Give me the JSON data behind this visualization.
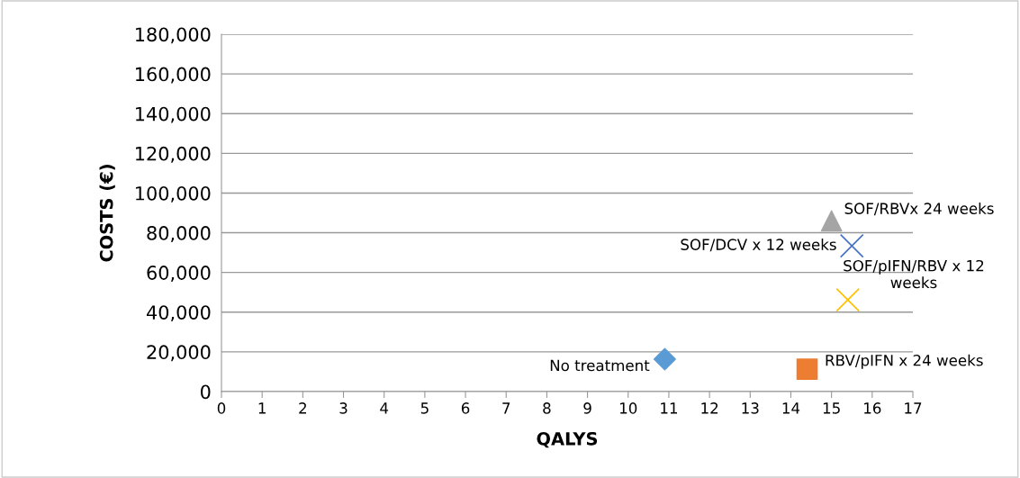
{
  "chart_data": {
    "type": "scatter",
    "xlabel": "QALYS",
    "ylabel": "COSTS (€)",
    "xlim": [
      0,
      17
    ],
    "xticks": [
      0,
      1,
      2,
      3,
      4,
      5,
      6,
      7,
      8,
      9,
      10,
      11,
      12,
      13,
      14,
      15,
      16,
      17
    ],
    "ylim": [
      0,
      180000
    ],
    "yticks": [
      {
        "value": 0,
        "label": "0"
      },
      {
        "value": 20000,
        "label": "20,000"
      },
      {
        "value": 40000,
        "label": "40,000"
      },
      {
        "value": 60000,
        "label": "60,000"
      },
      {
        "value": 80000,
        "label": "80,000"
      },
      {
        "value": 100000,
        "label": "100,000"
      },
      {
        "value": 120000,
        "label": "120,000"
      },
      {
        "value": 140000,
        "label": "140,000"
      },
      {
        "value": 160000,
        "label": "160,000"
      },
      {
        "value": 180000,
        "label": "180,000"
      }
    ],
    "grid": "y",
    "legend": false,
    "series": [
      {
        "name": "No treatment",
        "color": "#5b9bd5",
        "marker": "diamond",
        "x": [
          10.9
        ],
        "values": [
          16300
        ]
      },
      {
        "name": "RBV/pIFN x 24 weeks",
        "color": "#ed7d31",
        "marker": "square",
        "x": [
          14.4
        ],
        "values": [
          11300
        ]
      },
      {
        "name": "SOF/pIFN/RBV x 12\nweeks",
        "color": "#ffc000",
        "marker": "cross",
        "x": [
          15.4
        ],
        "values": [
          46200
        ]
      },
      {
        "name": "SOF/DCV x 12 weeks",
        "color": "#4472c4",
        "marker": "cross",
        "x": [
          15.5
        ],
        "values": [
          73400
        ]
      },
      {
        "name": "SOF/RBVx 24 weeks",
        "color": "#a5a5a5",
        "marker": "triangle",
        "x": [
          15.0
        ],
        "values": [
          86000
        ]
      }
    ]
  }
}
